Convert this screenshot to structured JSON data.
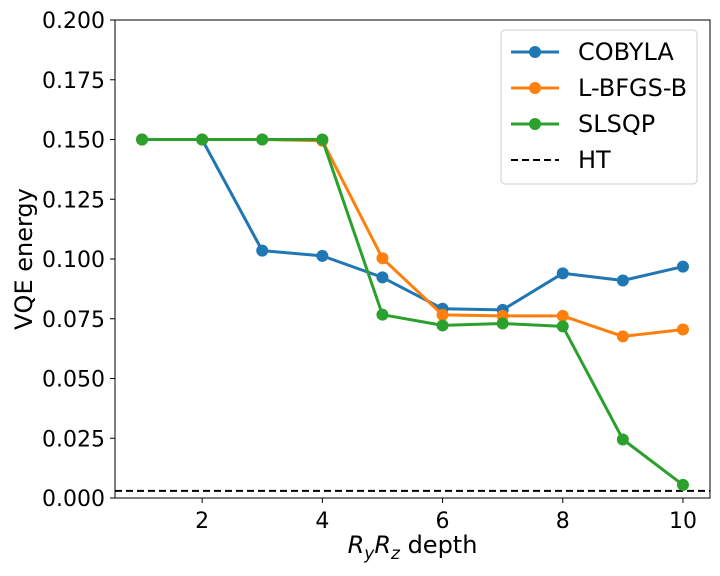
{
  "chart_data": {
    "type": "line",
    "x": [
      1,
      2,
      3,
      4,
      5,
      6,
      7,
      8,
      9,
      10
    ],
    "series": [
      {
        "name": "COBYLA",
        "color": "#1f77b4",
        "values": [
          0.15,
          0.15,
          0.1035,
          0.1013,
          0.0923,
          0.0792,
          0.0787,
          0.094,
          0.091,
          0.0968
        ]
      },
      {
        "name": "L-BFGS-B",
        "color": "#ff7f0e",
        "values": [
          0.15,
          0.15,
          0.15,
          0.1495,
          0.1003,
          0.0766,
          0.0762,
          0.0762,
          0.0676,
          0.0705
        ]
      },
      {
        "name": "SLSQP",
        "color": "#2ca02c",
        "values": [
          0.15,
          0.15,
          0.15,
          0.15,
          0.0767,
          0.0722,
          0.073,
          0.0718,
          0.0245,
          0.0055
        ]
      }
    ],
    "reference_lines": [
      {
        "name": "HT",
        "y": 0.003,
        "color": "#000000",
        "style": "dashed"
      }
    ],
    "xlim": [
      0.55,
      10.45
    ],
    "ylim": [
      0.0,
      0.2
    ],
    "xticks": [
      2,
      4,
      6,
      8,
      10
    ],
    "xtick_labels": [
      "2",
      "4",
      "6",
      "8",
      "10"
    ],
    "yticks": [
      0.0,
      0.025,
      0.05,
      0.075,
      0.1,
      0.125,
      0.15,
      0.175,
      0.2
    ],
    "ytick_labels": [
      "0.000",
      "0.025",
      "0.050",
      "0.075",
      "0.100",
      "0.125",
      "0.150",
      "0.175",
      "0.200"
    ],
    "xlabel": {
      "base1": "R",
      "sub1": "y",
      "base2": "R",
      "sub2": "z",
      "rest": " depth"
    },
    "ylabel": "VQE energy",
    "grid": false,
    "legend": "top-right"
  }
}
